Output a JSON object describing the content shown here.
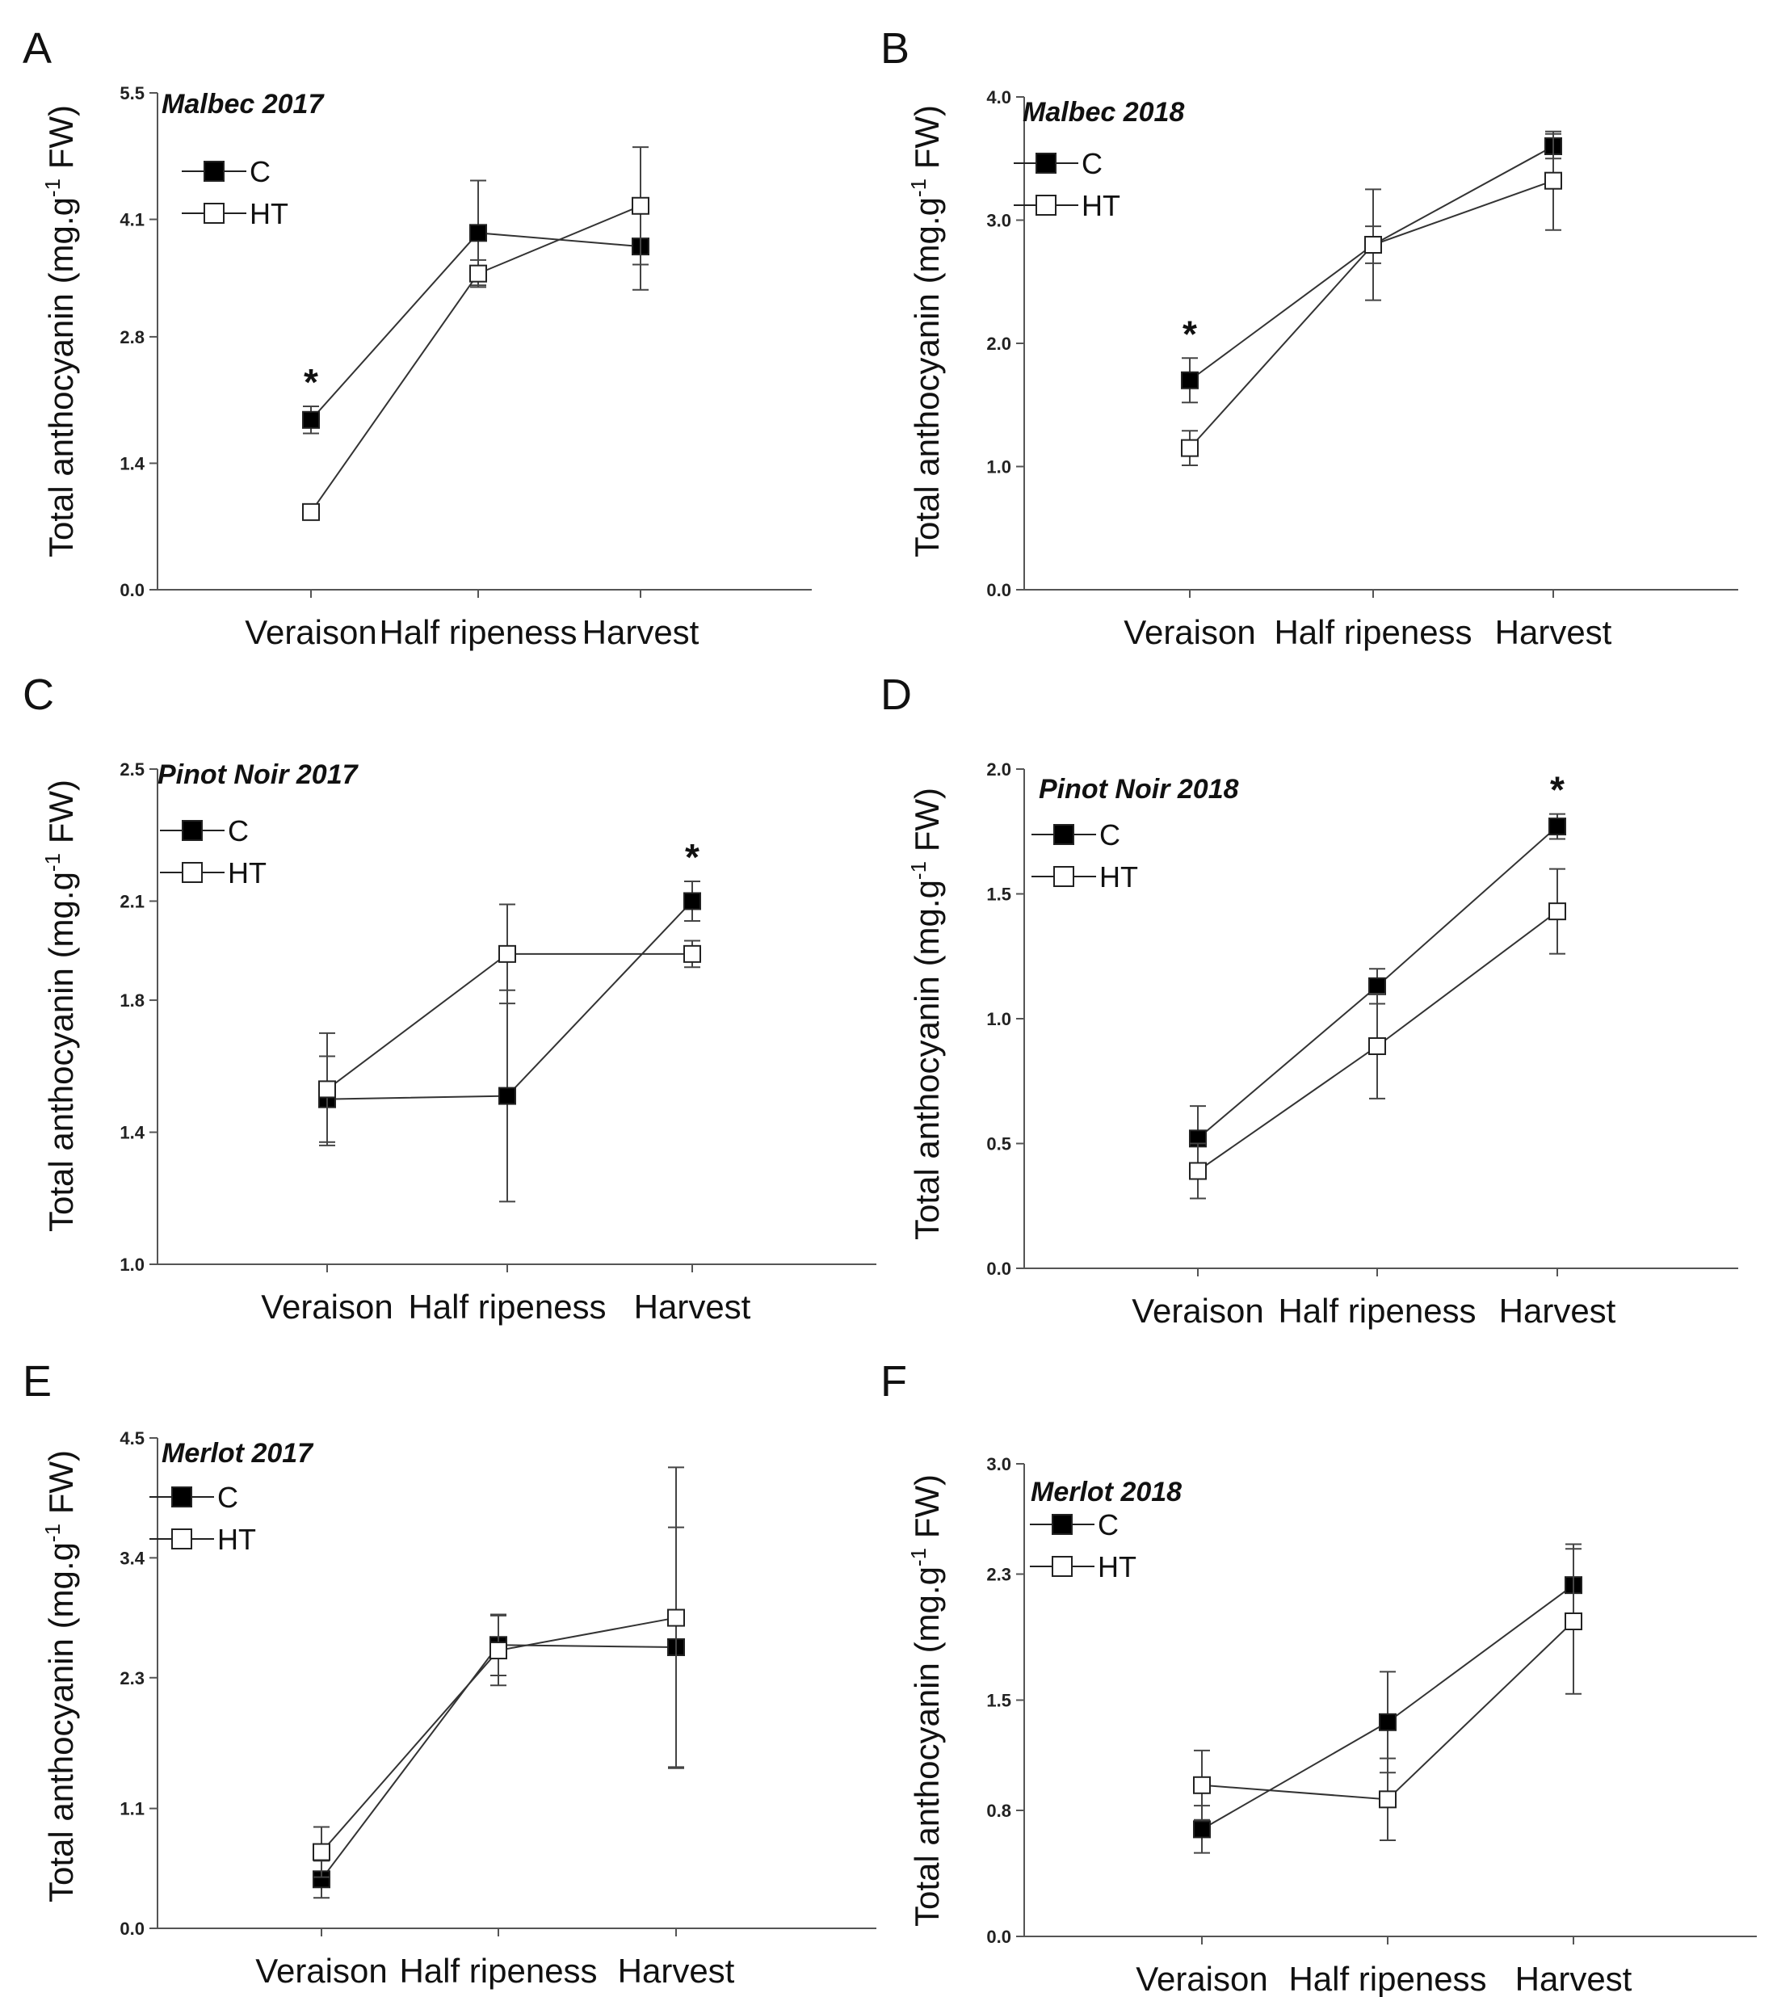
{
  "figure": {
    "ylabel_main": "Total anthocyanin (mg.g",
    "ylabel_sup": "-1",
    "ylabel_tail": " FW)"
  },
  "chart_data": [
    {
      "panel": "A",
      "type": "line",
      "title": "Malbec 2017",
      "categories": [
        "Veraison",
        "Half ripeness",
        "Harvest"
      ],
      "ylim": [
        0.0,
        5.5
      ],
      "yticks": [
        "0.0",
        "1.4",
        "2.8",
        "4.1",
        "5.5"
      ],
      "legend": [
        "C",
        "HT"
      ],
      "series": [
        {
          "name": "C",
          "fill": "#000000",
          "values": [
            1.88,
            3.95,
            3.8
          ],
          "errors": [
            0.15,
            0.58,
            0.48
          ]
        },
        {
          "name": "HT",
          "fill": "#ffffff",
          "values": [
            0.86,
            3.5,
            4.25
          ],
          "errors": [
            0.07,
            0.15,
            0.65
          ]
        }
      ],
      "significance": [
        {
          "category": 0,
          "label": "*"
        }
      ]
    },
    {
      "panel": "B",
      "type": "line",
      "title": "Malbec 2018",
      "categories": [
        "Veraison",
        "Half ripeness",
        "Harvest"
      ],
      "ylim": [
        0.0,
        4.0
      ],
      "yticks": [
        "0.0",
        "1.0",
        "2.0",
        "3.0",
        "4.0"
      ],
      "legend": [
        "C",
        "HT"
      ],
      "series": [
        {
          "name": "C",
          "fill": "#000000",
          "values": [
            1.7,
            2.8,
            3.6
          ],
          "errors": [
            0.18,
            0.15,
            0.1
          ]
        },
        {
          "name": "HT",
          "fill": "#ffffff",
          "values": [
            1.15,
            2.8,
            3.32
          ],
          "errors": [
            0.14,
            0.45,
            0.4
          ]
        }
      ],
      "significance": [
        {
          "category": 0,
          "label": "*"
        }
      ]
    },
    {
      "panel": "C",
      "type": "line",
      "title": "Pinot Noir 2017",
      "categories": [
        "Veraison",
        "Half ripeness",
        "Harvest"
      ],
      "ylim": [
        1.0,
        2.5
      ],
      "yticks": [
        "1.0",
        "1.4",
        "1.8",
        "2.1",
        "2.5"
      ],
      "legend": [
        "C",
        "HT"
      ],
      "series": [
        {
          "name": "C",
          "fill": "#000000",
          "values": [
            1.5,
            1.51,
            2.1
          ],
          "errors": [
            0.13,
            0.32,
            0.06
          ]
        },
        {
          "name": "HT",
          "fill": "#ffffff",
          "values": [
            1.53,
            1.94,
            1.94
          ],
          "errors": [
            0.17,
            0.15,
            0.04
          ]
        }
      ],
      "significance": [
        {
          "category": 2,
          "label": "*"
        }
      ]
    },
    {
      "panel": "D",
      "type": "line",
      "title": "Pinot Noir 2018",
      "categories": [
        "Veraison",
        "Half ripeness",
        "Harvest"
      ],
      "ylim": [
        0.0,
        2.0
      ],
      "yticks": [
        "0.0",
        "0.5",
        "1.0",
        "1.5",
        "2.0"
      ],
      "legend": [
        "C",
        "HT"
      ],
      "series": [
        {
          "name": "C",
          "fill": "#000000",
          "values": [
            0.52,
            1.13,
            1.77
          ],
          "errors": [
            0.13,
            0.07,
            0.05
          ]
        },
        {
          "name": "HT",
          "fill": "#ffffff",
          "values": [
            0.39,
            0.89,
            1.43
          ],
          "errors": [
            0.11,
            0.21,
            0.17
          ]
        }
      ],
      "significance": [
        {
          "category": 2,
          "label": "*"
        }
      ]
    },
    {
      "panel": "E",
      "type": "line",
      "title": "Merlot 2017",
      "categories": [
        "Veraison",
        "Half ripeness",
        "Harvest"
      ],
      "ylim": [
        0.0,
        4.5
      ],
      "yticks": [
        "0.0",
        "1.1",
        "2.3",
        "3.4",
        "4.5"
      ],
      "legend": [
        "C",
        "HT"
      ],
      "series": [
        {
          "name": "C",
          "fill": "#000000",
          "values": [
            0.45,
            2.6,
            2.58
          ],
          "errors": [
            0.17,
            0.28,
            1.1
          ]
        },
        {
          "name": "HT",
          "fill": "#ffffff",
          "values": [
            0.7,
            2.55,
            2.85
          ],
          "errors": [
            0.23,
            0.32,
            1.38
          ]
        }
      ],
      "significance": []
    },
    {
      "panel": "F",
      "type": "line",
      "title": "Merlot 2018",
      "categories": [
        "Veraison",
        "Half ripeness",
        "Harvest"
      ],
      "ylim": [
        0.0,
        3.0
      ],
      "yticks": [
        "0.0",
        "0.8",
        "1.5",
        "2.3",
        "3.0"
      ],
      "legend": [
        "C",
        "HT"
      ],
      "series": [
        {
          "name": "C",
          "fill": "#000000",
          "values": [
            0.68,
            1.36,
            2.23
          ],
          "errors": [
            0.15,
            0.32,
            0.26
          ]
        },
        {
          "name": "HT",
          "fill": "#ffffff",
          "values": [
            0.96,
            0.87,
            2.0
          ],
          "errors": [
            0.22,
            0.26,
            0.46
          ]
        }
      ],
      "significance": []
    }
  ]
}
